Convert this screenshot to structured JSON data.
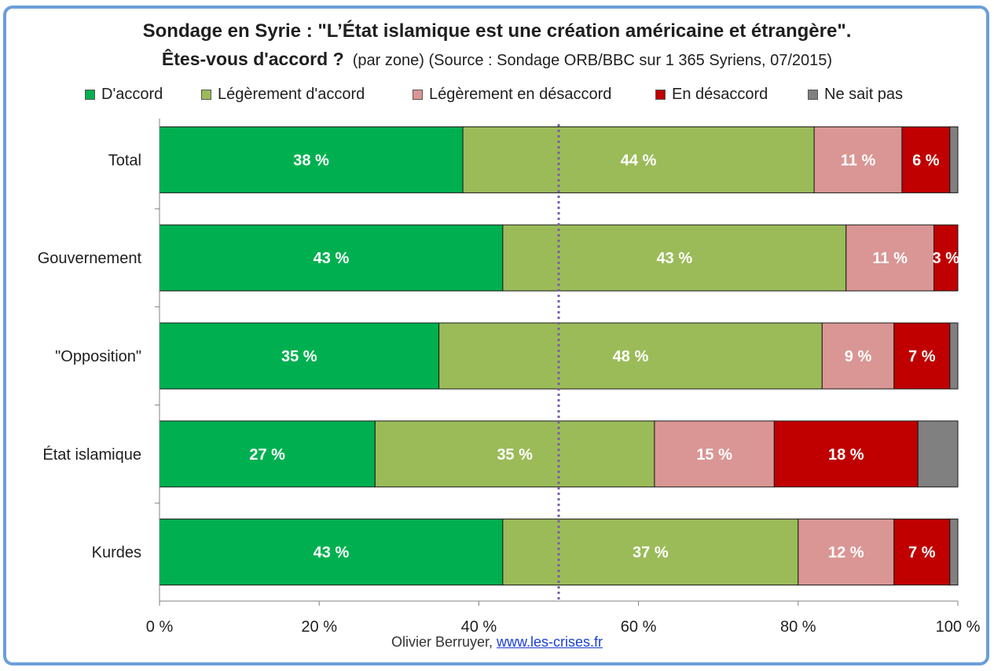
{
  "header": {
    "title_line1": "Sondage en Syrie : \"L’État islamique est une création américaine et étrangère\".",
    "title_line2_bold": "Êtes-vous d'accord ?",
    "title_line2_normal": "(par zone) (Source : Sondage ORB/BBC sur 1 365 Syriens, 07/2015)"
  },
  "footer": {
    "author": "Olivier Berruyer,",
    "link": "www.les-crises.fr"
  },
  "colors": {
    "accent_border": "#6a9fd9",
    "reference_line": "#7a5fa8"
  },
  "chart_data": {
    "type": "bar",
    "orientation": "horizontal",
    "stacked": "percent",
    "categories": [
      "Total",
      "Gouvernement",
      "\"Opposition\"",
      "État islamique",
      "Kurdes"
    ],
    "series": [
      {
        "name": "D'accord",
        "color": "#00b050",
        "values": [
          38,
          43,
          35,
          27,
          43
        ],
        "labels": [
          "38 %",
          "43 %",
          "35 %",
          "27 %",
          "43 %"
        ]
      },
      {
        "name": "Légèrement d'accord",
        "color": "#9bbb59",
        "values": [
          44,
          43,
          48,
          35,
          37
        ],
        "labels": [
          "44 %",
          "43 %",
          "48 %",
          "35 %",
          "37 %"
        ]
      },
      {
        "name": "Légèrement en désaccord",
        "color": "#d99694",
        "values": [
          11,
          11,
          9,
          15,
          12
        ],
        "labels": [
          "11 %",
          "11 %",
          "9 %",
          "15 %",
          "12 %"
        ]
      },
      {
        "name": "En désaccord",
        "color": "#c00000",
        "values": [
          6,
          3,
          7,
          18,
          7
        ],
        "labels": [
          "6 %",
          "3 %",
          "7 %",
          "18 %",
          "7 %"
        ]
      },
      {
        "name": "Ne sait pas",
        "color": "#808080",
        "values": [
          1,
          0,
          1,
          5,
          1
        ],
        "labels": [
          "",
          "",
          "",
          "",
          ""
        ]
      }
    ],
    "x_ticks": [
      "0 %",
      "20 %",
      "40 %",
      "60 %",
      "80 %",
      "100 %"
    ],
    "xlim": [
      0,
      100
    ],
    "reference_line_x": 50,
    "legend_position": "top",
    "grid": false
  }
}
